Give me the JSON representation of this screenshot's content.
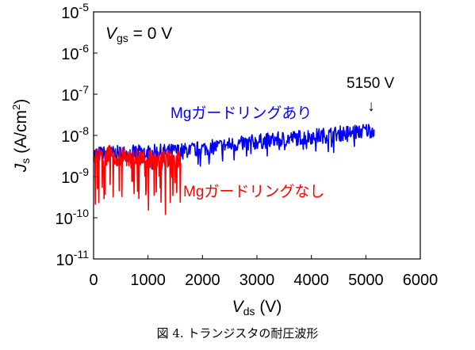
{
  "chart_data": {
    "type": "line",
    "x_axis": {
      "label_main": "V",
      "label_sub": "ds",
      "label_unit": " (V)",
      "range": [
        0,
        6000
      ],
      "ticks": [
        0,
        1000,
        2000,
        3000,
        4000,
        5000,
        6000
      ],
      "tick_labels": [
        "0",
        "1000",
        "2000",
        "3000",
        "4000",
        "5000",
        "6000"
      ]
    },
    "y_axis": {
      "label_main": "J",
      "label_sub": "s",
      "label_unit": " (A/cm",
      "label_sup": "2",
      "label_close": ")",
      "scale": "log",
      "range": [
        1e-11,
        1e-05
      ],
      "ticks": [
        1e-11,
        1e-10,
        1e-09,
        1e-08,
        1e-07,
        1e-06,
        1e-05
      ],
      "tick_base": "10",
      "tick_exponents": [
        "-11",
        "-10",
        "-9",
        "-8",
        "-7",
        "-6",
        "-5"
      ]
    },
    "condition": {
      "main": "V",
      "sub": "gs",
      "rest": " = 0 V"
    },
    "series": [
      {
        "name": "Mgガードリングあり",
        "color": "#0000ff",
        "x": [
          0,
          250,
          500,
          750,
          1000,
          1250,
          1500,
          1750,
          2000,
          2250,
          2500,
          2750,
          3000,
          3250,
          3500,
          3750,
          4000,
          4250,
          4500,
          4750,
          5000,
          5150
        ],
        "y": [
          3.5e-09,
          3.6e-09,
          3.7e-09,
          3.8e-09,
          3.9e-09,
          4e-09,
          4.1e-09,
          4.4e-09,
          4.8e-09,
          5.3e-09,
          5.9e-09,
          6.5e-09,
          7e-09,
          7.6e-09,
          8.2e-09,
          8.8e-09,
          9.5e-09,
          1e-08,
          1.1e-08,
          1.2e-08,
          1.3e-08,
          1.4e-08
        ]
      },
      {
        "name": "Mgガードリングなし",
        "color": "#ff0000",
        "x": [
          0,
          100,
          200,
          300,
          400,
          500,
          600,
          700,
          800,
          900,
          1000,
          1100,
          1200,
          1300,
          1400,
          1500,
          1600
        ],
        "y": [
          3e-09,
          3.2e-09,
          2.8e-09,
          3.5e-09,
          2.6e-09,
          3.1e-09,
          2.9e-09,
          2.5e-09,
          3e-09,
          2.7e-09,
          2.8e-09,
          2.4e-09,
          2.9e-09,
          2.6e-09,
          2.5e-09,
          2.8e-09,
          2.6e-09
        ]
      }
    ],
    "annotations": [
      {
        "text": "5150 V",
        "x": 5150,
        "arrow": "↓"
      }
    ]
  },
  "caption": "図 4. トランジスタの耐圧波形"
}
